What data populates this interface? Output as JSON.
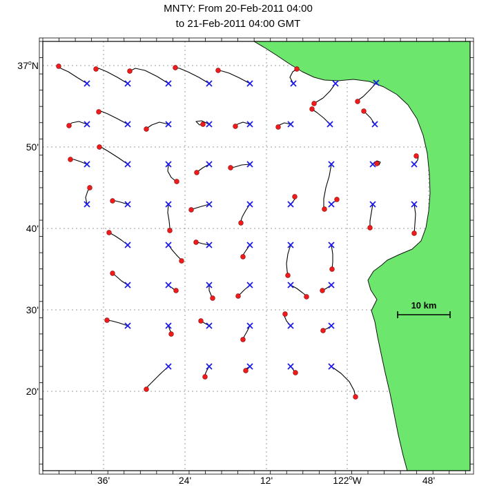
{
  "title": {
    "line1": "MNTY: From 20-Feb-2011 04:00",
    "line2": "to 21-Feb-2011 04:00 GMT"
  },
  "axes": {
    "y_ticks": [
      {
        "label": "37°N",
        "y": 95
      },
      {
        "label": "50'",
        "y": 213
      },
      {
        "label": "40'",
        "y": 331
      },
      {
        "label": "30'",
        "y": 449
      },
      {
        "label": "20'",
        "y": 567
      }
    ],
    "x_ticks": [
      {
        "label": "36'",
        "x": 150
      },
      {
        "label": "24'",
        "x": 268
      },
      {
        "label": "12'",
        "x": 386
      },
      {
        "label": "122°W",
        "x": 503
      },
      {
        "label": "48'",
        "x": 621
      }
    ]
  },
  "scalebar": {
    "label": "10 km",
    "x1": 576,
    "x2": 652,
    "y": 456
  },
  "colors": {
    "land": "#6ce66c",
    "coast": "#111111",
    "grid": "#9a9a9a",
    "trajectory": "#000000",
    "start_marker": "#1a1ae6",
    "end_marker": "#f21b1b",
    "end_marker_edge": "#7d0000",
    "frame": "#000000",
    "background": "#ffffff"
  },
  "map": {
    "coastline": [
      [
        368,
        60
      ],
      [
        681,
        60
      ],
      [
        681,
        682
      ],
      [
        590,
        682
      ],
      [
        584,
        660
      ],
      [
        577,
        630
      ],
      [
        571,
        600
      ],
      [
        565,
        570
      ],
      [
        558,
        540
      ],
      [
        552,
        512
      ],
      [
        547,
        488
      ],
      [
        543,
        466
      ],
      [
        538,
        450
      ],
      [
        546,
        434
      ],
      [
        537,
        420
      ],
      [
        533,
        406
      ],
      [
        541,
        393
      ],
      [
        553,
        384
      ],
      [
        561,
        377
      ],
      [
        578,
        369
      ],
      [
        597,
        361
      ],
      [
        610,
        349
      ],
      [
        617,
        330
      ],
      [
        621,
        306
      ],
      [
        623,
        280
      ],
      [
        622,
        252
      ],
      [
        619,
        222
      ],
      [
        613,
        196
      ],
      [
        604,
        172
      ],
      [
        591,
        152
      ],
      [
        575,
        137
      ],
      [
        556,
        126
      ],
      [
        535,
        118
      ],
      [
        512,
        115
      ],
      [
        490,
        117
      ],
      [
        470,
        116
      ],
      [
        455,
        112
      ],
      [
        438,
        104
      ],
      [
        420,
        93
      ],
      [
        402,
        81
      ],
      [
        385,
        70
      ]
    ]
  },
  "chart_data": {
    "type": "trajectory-map",
    "title": "MNTY: From 20-Feb-2011 04:00 to 21-Feb-2011 04:00 GMT",
    "markers": {
      "start": {
        "shape": "x",
        "color": "#1a1ae6"
      },
      "end": {
        "shape": "dot",
        "color": "#f21b1b"
      }
    },
    "drifters": [
      [
        [
          126,
          121
        ],
        [
          113,
          113
        ],
        [
          99,
          104
        ],
        [
          88,
          99
        ],
        [
          85,
          96
        ]
      ],
      [
        [
          185,
          121
        ],
        [
          170,
          112
        ],
        [
          155,
          104
        ],
        [
          143,
          99
        ],
        [
          139,
          100
        ]
      ],
      [
        [
          244,
          121
        ],
        [
          228,
          111
        ],
        [
          210,
          102
        ],
        [
          196,
          99
        ],
        [
          188,
          103
        ]
      ],
      [
        [
          303,
          121
        ],
        [
          288,
          112
        ],
        [
          272,
          104
        ],
        [
          260,
          99
        ],
        [
          254,
          98
        ]
      ],
      [
        [
          362,
          121
        ],
        [
          347,
          113
        ],
        [
          332,
          106
        ],
        [
          322,
          103
        ],
        [
          316,
          102
        ]
      ],
      [
        [
          425,
          121
        ],
        [
          420,
          112
        ],
        [
          424,
          104
        ],
        [
          430,
          100
        ]
      ],
      [
        [
          486,
          121
        ],
        [
          478,
          132
        ],
        [
          468,
          142
        ],
        [
          458,
          148
        ],
        [
          455,
          150
        ]
      ],
      [
        [
          545,
          120
        ],
        [
          536,
          130
        ],
        [
          526,
          140
        ],
        [
          519,
          145
        ],
        [
          518,
          147
        ]
      ],
      [
        [
          126,
          180
        ],
        [
          114,
          176
        ],
        [
          104,
          178
        ],
        [
          100,
          182
        ]
      ],
      [
        [
          185,
          180
        ],
        [
          170,
          172
        ],
        [
          156,
          165
        ],
        [
          146,
          161
        ],
        [
          143,
          162
        ]
      ],
      [
        [
          244,
          180
        ],
        [
          231,
          177
        ],
        [
          220,
          181
        ],
        [
          214,
          185
        ],
        [
          212,
          187
        ]
      ],
      [
        [
          303,
          180
        ],
        [
          292,
          175
        ],
        [
          284,
          176
        ],
        [
          289,
          181
        ],
        [
          294,
          180
        ]
      ],
      [
        [
          362,
          180
        ],
        [
          352,
          177
        ],
        [
          344,
          180
        ],
        [
          341,
          183
        ]
      ],
      [
        [
          421,
          180
        ],
        [
          412,
          178
        ],
        [
          405,
          181
        ],
        [
          403,
          184
        ]
      ],
      [
        [
          478,
          180
        ],
        [
          469,
          171
        ],
        [
          459,
          163
        ],
        [
          453,
          159
        ],
        [
          452,
          158
        ]
      ],
      [
        [
          543,
          180
        ],
        [
          537,
          171
        ],
        [
          530,
          164
        ],
        [
          527,
          161
        ]
      ],
      [
        [
          126,
          238
        ],
        [
          116,
          234
        ],
        [
          107,
          231
        ],
        [
          102,
          231
        ]
      ],
      [
        [
          185,
          238
        ],
        [
          172,
          229
        ],
        [
          158,
          220
        ],
        [
          148,
          214
        ],
        [
          144,
          213
        ]
      ],
      [
        [
          244,
          238
        ],
        [
          243,
          248
        ],
        [
          248,
          257
        ],
        [
          254,
          262
        ],
        [
          256,
          263
        ]
      ],
      [
        [
          303,
          238
        ],
        [
          294,
          243
        ],
        [
          287,
          248
        ],
        [
          285,
          250
        ]
      ],
      [
        [
          362,
          238
        ],
        [
          350,
          239
        ],
        [
          340,
          242
        ],
        [
          334,
          243
        ]
      ],
      [
        [
          480,
          238
        ],
        [
          477,
          255
        ],
        [
          472,
          272
        ],
        [
          469,
          288
        ],
        [
          469,
          300
        ],
        [
          470,
          303
        ]
      ],
      [
        [
          540,
          238
        ],
        [
          546,
          233
        ],
        [
          551,
          235
        ],
        [
          549,
          239
        ],
        [
          546,
          237
        ]
      ],
      [
        [
          600,
          238
        ],
        [
          605,
          232
        ],
        [
          606,
          227
        ],
        [
          603,
          226
        ]
      ],
      [
        [
          126,
          296
        ],
        [
          124,
          286
        ],
        [
          127,
          277
        ],
        [
          130,
          272
        ]
      ],
      [
        [
          185,
          296
        ],
        [
          175,
          293
        ],
        [
          167,
          291
        ],
        [
          163,
          291
        ]
      ],
      [
        [
          244,
          296
        ],
        [
          243,
          308
        ],
        [
          245,
          320
        ],
        [
          246,
          330
        ],
        [
          246,
          334
        ]
      ],
      [
        [
          303,
          296
        ],
        [
          292,
          299
        ],
        [
          282,
          302
        ],
        [
          277,
          304
        ]
      ],
      [
        [
          362,
          296
        ],
        [
          356,
          305
        ],
        [
          351,
          314
        ],
        [
          349,
          320
        ],
        [
          349,
          323
        ]
      ],
      [
        [
          421,
          296
        ],
        [
          426,
          290
        ],
        [
          428,
          286
        ],
        [
          427,
          285
        ]
      ],
      [
        [
          480,
          296
        ],
        [
          485,
          292
        ],
        [
          488,
          289
        ]
      ],
      [
        [
          540,
          296
        ],
        [
          538,
          308
        ],
        [
          536,
          320
        ],
        [
          536,
          330
        ]
      ],
      [
        [
          600,
          296
        ],
        [
          602,
          310
        ],
        [
          601,
          325
        ],
        [
          600,
          338
        ]
      ],
      [
        [
          185,
          355
        ],
        [
          176,
          348
        ],
        [
          167,
          342
        ],
        [
          160,
          338
        ],
        [
          158,
          337
        ]
      ],
      [
        [
          244,
          355
        ],
        [
          250,
          363
        ],
        [
          257,
          371
        ],
        [
          262,
          376
        ],
        [
          263,
          378
        ]
      ],
      [
        [
          303,
          355
        ],
        [
          293,
          353
        ],
        [
          286,
          351
        ],
        [
          284,
          351
        ]
      ],
      [
        [
          362,
          355
        ],
        [
          357,
          362
        ],
        [
          353,
          368
        ],
        [
          352,
          372
        ]
      ],
      [
        [
          421,
          355
        ],
        [
          417,
          368
        ],
        [
          415,
          382
        ],
        [
          416,
          393
        ],
        [
          417,
          399
        ]
      ],
      [
        [
          480,
          355
        ],
        [
          482,
          368
        ],
        [
          482,
          380
        ],
        [
          481,
          390
        ]
      ],
      [
        [
          185,
          413
        ],
        [
          176,
          407
        ],
        [
          168,
          400
        ],
        [
          163,
          396
        ]
      ],
      [
        [
          244,
          413
        ],
        [
          249,
          417
        ],
        [
          253,
          420
        ],
        [
          255,
          421
        ]
      ],
      [
        [
          303,
          413
        ],
        [
          303,
          421
        ],
        [
          306,
          428
        ],
        [
          308,
          432
        ]
      ],
      [
        [
          362,
          413
        ],
        [
          354,
          420
        ],
        [
          348,
          426
        ],
        [
          345,
          429
        ]
      ],
      [
        [
          421,
          413
        ],
        [
          430,
          418
        ],
        [
          438,
          424
        ],
        [
          443,
          428
        ],
        [
          444,
          430
        ]
      ],
      [
        [
          480,
          413
        ],
        [
          474,
          417
        ],
        [
          469,
          420
        ],
        [
          467,
          421
        ]
      ],
      [
        [
          185,
          472
        ],
        [
          173,
          468
        ],
        [
          162,
          465
        ],
        [
          155,
          464
        ]
      ],
      [
        [
          244,
          472
        ],
        [
          246,
          478
        ],
        [
          248,
          482
        ],
        [
          248,
          484
        ]
      ],
      [
        [
          303,
          472
        ],
        [
          296,
          468
        ],
        [
          292,
          466
        ],
        [
          291,
          465
        ]
      ],
      [
        [
          362,
          472
        ],
        [
          358,
          480
        ],
        [
          354,
          487
        ],
        [
          352,
          492
        ]
      ],
      [
        [
          421,
          472
        ],
        [
          415,
          465
        ],
        [
          412,
          458
        ],
        [
          413,
          455
        ]
      ],
      [
        [
          480,
          472
        ],
        [
          474,
          476
        ],
        [
          469,
          478
        ],
        [
          468,
          479
        ]
      ],
      [
        [
          244,
          531
        ],
        [
          233,
          541
        ],
        [
          222,
          552
        ],
        [
          214,
          560
        ],
        [
          212,
          564
        ]
      ],
      [
        [
          303,
          531
        ],
        [
          299,
          538
        ],
        [
          297,
          543
        ],
        [
          297,
          546
        ]
      ],
      [
        [
          362,
          531
        ],
        [
          357,
          534
        ],
        [
          356,
          537
        ]
      ],
      [
        [
          421,
          531
        ],
        [
          425,
          536
        ],
        [
          428,
          540
        ]
      ],
      [
        [
          480,
          531
        ],
        [
          494,
          541
        ],
        [
          506,
          553
        ],
        [
          513,
          566
        ],
        [
          515,
          575
        ]
      ]
    ]
  }
}
